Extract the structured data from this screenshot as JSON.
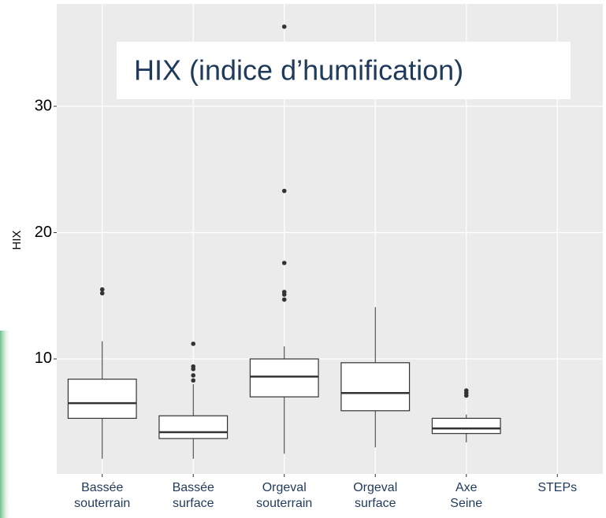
{
  "chart_data": {
    "type": "box",
    "title": "HIX (indice d’humification)",
    "y_label": "HIX",
    "categories": [
      "Bassée souterrain",
      "Bassée surface",
      "Orgeval souterrain",
      "Orgeval surface",
      "Axe Seine",
      "STEPs"
    ],
    "whisker_low": [
      2.1,
      2.1,
      2.5,
      3.0,
      3.4,
      null
    ],
    "q1": [
      5.3,
      3.7,
      7.0,
      5.9,
      4.1,
      null
    ],
    "median": [
      6.5,
      4.2,
      8.6,
      7.3,
      4.5,
      null
    ],
    "q3": [
      8.4,
      5.5,
      10.0,
      9.7,
      5.3,
      null
    ],
    "whisker_high": [
      11.4,
      8.0,
      11.0,
      14.1,
      5.6,
      null
    ],
    "outliers": [
      [
        15.2,
        15.5
      ],
      [
        8.3,
        8.7,
        9.2,
        9.4,
        11.2
      ],
      [
        14.7,
        15.1,
        15.3,
        17.6,
        23.3,
        36.3
      ],
      null,
      [
        7.1,
        7.3,
        7.5
      ],
      null
    ],
    "box_color": "#ffffff",
    "line_color": "#333333",
    "point_color": "#333333",
    "ylim": [
      0.9,
      38.1
    ],
    "yticks": [
      10,
      20,
      30
    ],
    "grid": true
  }
}
